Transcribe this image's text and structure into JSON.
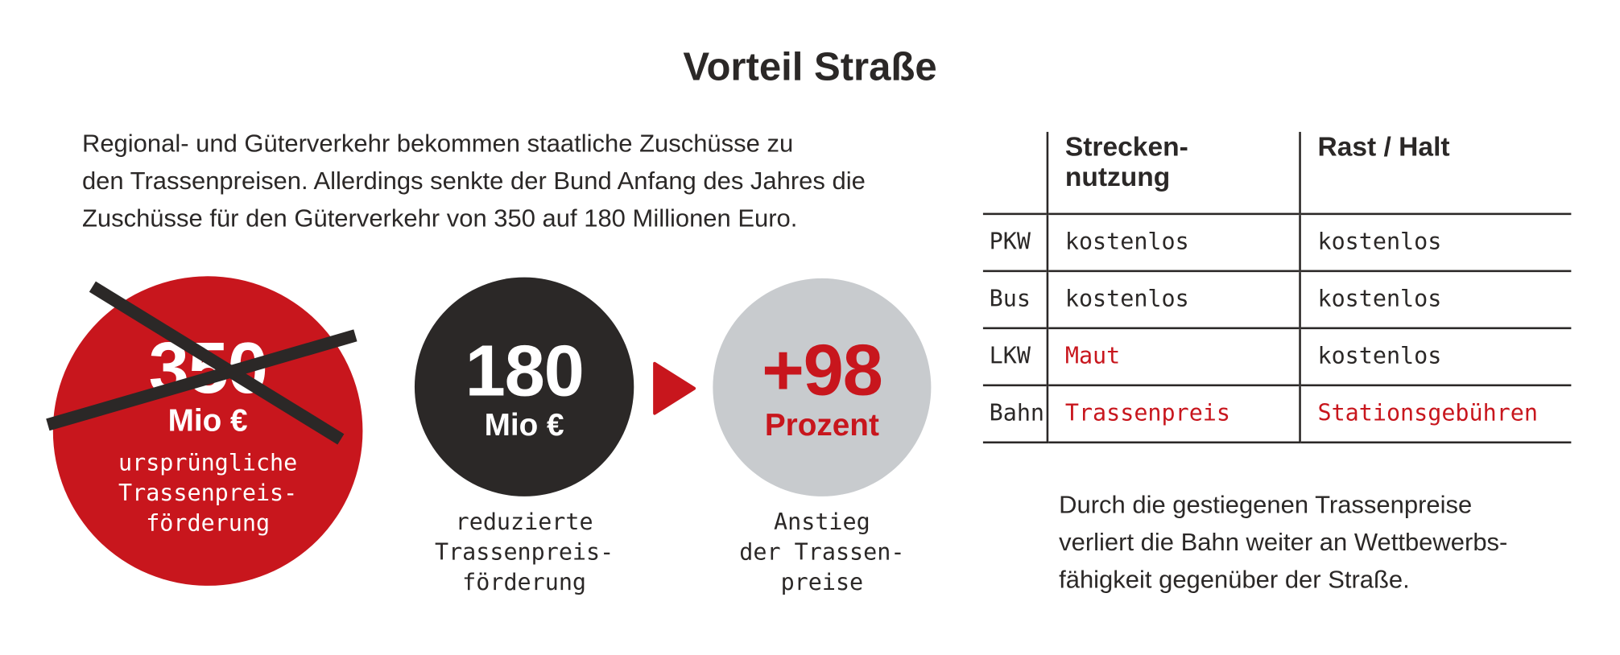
{
  "title": "Vorteil Straße",
  "intro": [
    "Regional- und Güterverkehr bekommen staatliche Zuschüsse zu",
    "den Trassenpreisen. Allerdings senkte der Bund Anfang des Jahres die",
    "Zuschüsse für den Güterverkehr von 350 auf 180 Millionen Euro."
  ],
  "circles": {
    "original": {
      "number": "350",
      "unit": "Mio €",
      "caption": [
        "ursprüngliche",
        "Trassenpreis-",
        "förderung"
      ],
      "crossed_out": true
    },
    "reduced": {
      "number": "180",
      "unit": "Mio €",
      "caption": [
        "reduzierte",
        "Trassenpreis-",
        "förderung"
      ]
    },
    "increase": {
      "number": "+98",
      "unit": "Prozent",
      "caption": [
        "Anstieg",
        "der Trassen-",
        "preise"
      ]
    }
  },
  "table": {
    "headers": [
      "",
      "Strecken-\nnutzung",
      "Rast / Halt"
    ],
    "header_lines": {
      "col1": [
        "Strecken-",
        "nutzung"
      ],
      "col2": [
        "Rast / Halt"
      ]
    },
    "rows": [
      {
        "vehicle": "PKW",
        "route": "kostenlos",
        "stop": "kostenlos",
        "route_red": false,
        "stop_red": false
      },
      {
        "vehicle": "Bus",
        "route": "kostenlos",
        "stop": "kostenlos",
        "route_red": false,
        "stop_red": false
      },
      {
        "vehicle": "LKW",
        "route": "Maut",
        "stop": "kostenlos",
        "route_red": true,
        "stop_red": false
      },
      {
        "vehicle": "Bahn",
        "route": "Trassenpreis",
        "stop": "Stationsgebühren",
        "route_red": true,
        "stop_red": true
      }
    ]
  },
  "conclusion": [
    "Durch die gestiegenen Trassenpreise",
    "verliert die Bahn weiter an Wettbewerbs-",
    "fähigkeit gegenüber der Straße."
  ],
  "colors": {
    "red": "#c8161d",
    "dark": "#2b2827",
    "grey": "#c8cbce",
    "white": "#ffffff"
  },
  "icons": {
    "arrow": "play-triangle-icon",
    "cross": "x-cross-icon"
  }
}
